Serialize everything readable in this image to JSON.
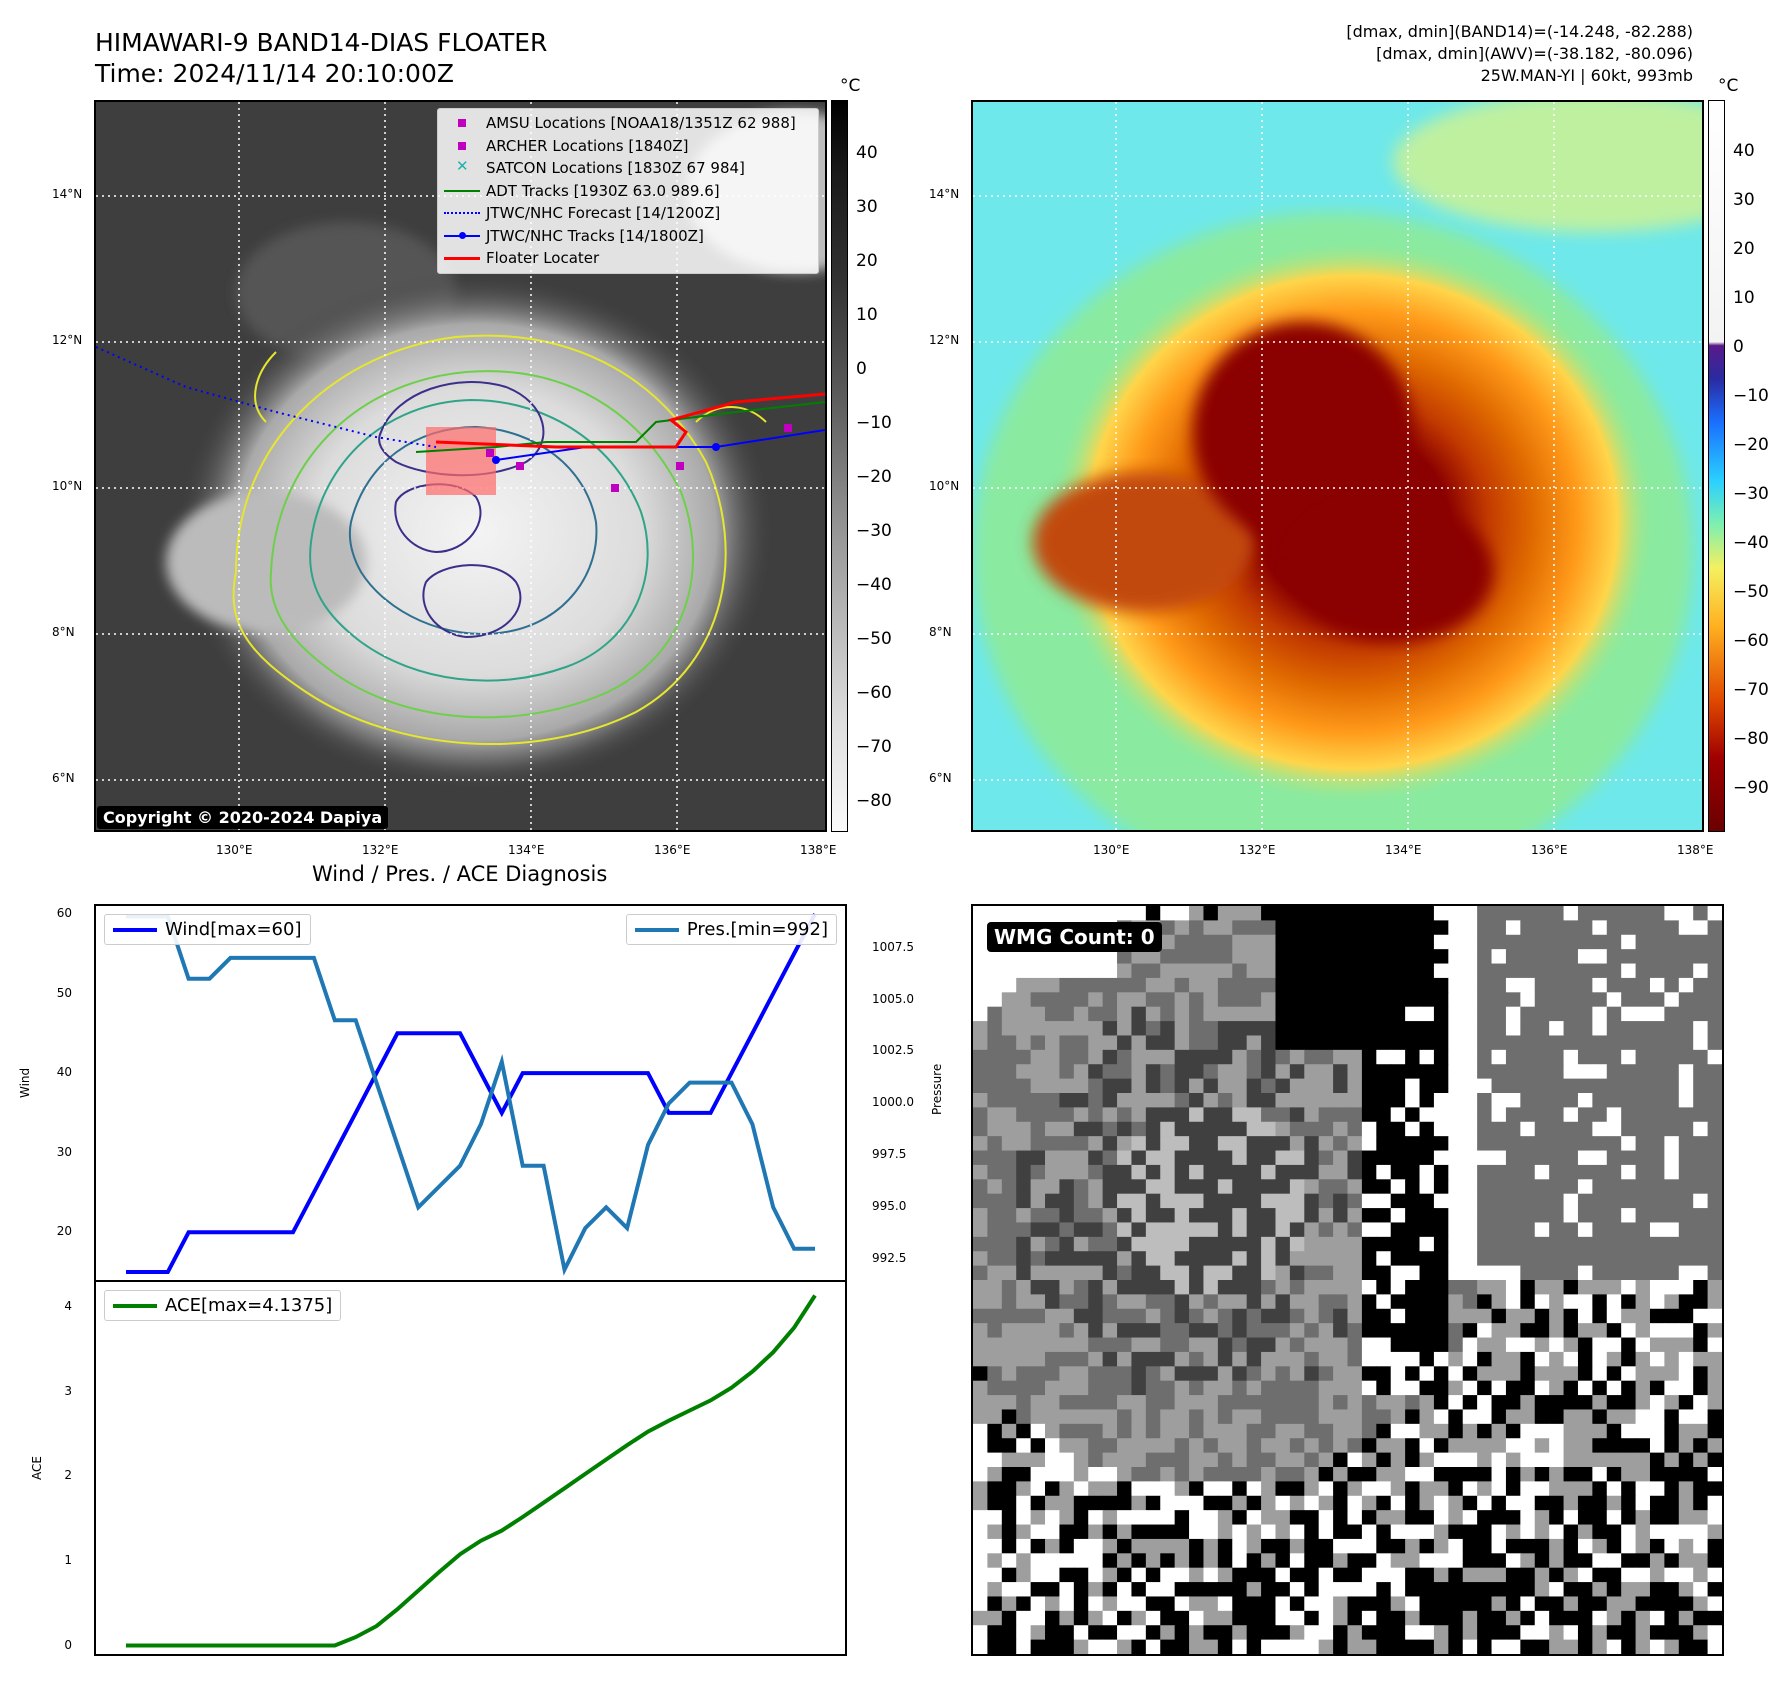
{
  "header": {
    "title_line1": "HIMAWARI-9 BAND14-DIAS FLOATER",
    "title_line2": "Time: 2024/11/14 20:10:00Z",
    "info_line1": "[dmax, dmin](BAND14)=(-14.248, -82.288)",
    "info_line2": "[dmax, dmin](AWV)=(-38.182, -80.096)",
    "info_line3": "25W.MAN-YI | 60kt, 993mb"
  },
  "map": {
    "lat_labels": [
      "14°N",
      "12°N",
      "10°N",
      "8°N",
      "6°N"
    ],
    "lon_labels": [
      "130°E",
      "132°E",
      "134°E",
      "136°E",
      "138°E"
    ],
    "copyright": "Copyright © 2020-2024 Dapiya",
    "legend": [
      {
        "label": "AMSU Locations [NOAA18/1351Z 62 988]",
        "symbol": "square",
        "color": "#c000c0"
      },
      {
        "label": "ARCHER Locations [1840Z]",
        "symbol": "square",
        "color": "#c000c0"
      },
      {
        "label": "SATCON Locations [1830Z 67 984]",
        "symbol": "x",
        "color": "#20b2aa"
      },
      {
        "label": "ADT Tracks [1930Z 63.0 989.6]",
        "symbol": "line",
        "color": "#008000"
      },
      {
        "label": "JTWC/NHC Forecast [14/1200Z]",
        "symbol": "dotted",
        "color": "#0000ff"
      },
      {
        "label": "JTWC/NHC Tracks [14/1800Z]",
        "symbol": "line-dot",
        "color": "#0000ff"
      },
      {
        "label": "Floater Locater",
        "symbol": "line",
        "color": "#ff0000"
      }
    ]
  },
  "colorbar_gray": {
    "unit": "°C",
    "ticks": [
      "40",
      "30",
      "20",
      "10",
      "0",
      "−10",
      "−20",
      "−30",
      "−40",
      "−50",
      "−60",
      "−70",
      "−80"
    ]
  },
  "colorbar_color": {
    "unit": "°C",
    "ticks": [
      "40",
      "30",
      "20",
      "10",
      "0",
      "−10",
      "−20",
      "−30",
      "−40",
      "−50",
      "−60",
      "−70",
      "−80",
      "−90"
    ]
  },
  "diagnosis": {
    "title": "Wind / Pres. / ACE Diagnosis",
    "wind_legend": "Wind[max=60]",
    "pres_legend": "Pres.[min=992]",
    "ace_legend": "ACE[max=4.1375]",
    "wind_axis_label": "Wind",
    "pres_axis_label": "Pressure",
    "ace_axis_label": "ACE",
    "wmg_count": "WMG Count: 0"
  },
  "chart_data": [
    {
      "type": "line",
      "name": "wind",
      "series_name": "Wind[max=60]",
      "color": "#0000ff",
      "values": [
        15,
        15,
        15,
        20,
        20,
        20,
        20,
        20,
        20,
        25,
        30,
        35,
        40,
        45,
        45,
        45,
        45,
        40,
        35,
        40,
        40,
        40,
        40,
        40,
        40,
        40,
        35,
        35,
        35,
        40,
        45,
        50,
        55,
        60
      ],
      "ylim": [
        14,
        61
      ],
      "yticks": [
        "20",
        "30",
        "40",
        "50",
        "60"
      ]
    },
    {
      "type": "line",
      "name": "pressure",
      "series_name": "Pres.[min=992]",
      "color": "#1f77b4",
      "values": [
        1009,
        1009,
        1009,
        1006,
        1006,
        1007,
        1007,
        1007,
        1007,
        1007,
        1004,
        1004,
        1001,
        998,
        995,
        996,
        997,
        999,
        1002,
        997,
        997,
        992,
        994,
        995,
        994,
        998,
        1000,
        1001,
        1001,
        1001,
        999,
        995,
        993,
        993
      ],
      "ylim": [
        991.5,
        1009.5
      ],
      "yticks": [
        "1007.5",
        "1005.0",
        "1002.5",
        "1000.0",
        "997.5",
        "995.0",
        "992.5"
      ]
    },
    {
      "type": "line",
      "name": "ace",
      "series_name": "ACE[max=4.1375]",
      "color": "#008000",
      "values": [
        0,
        0,
        0,
        0,
        0,
        0,
        0,
        0,
        0,
        0,
        0,
        0.1,
        0.23,
        0.43,
        0.65,
        0.87,
        1.08,
        1.24,
        1.36,
        1.52,
        1.69,
        1.86,
        2.03,
        2.2,
        2.37,
        2.53,
        2.66,
        2.78,
        2.9,
        3.05,
        3.24,
        3.47,
        3.76,
        4.14
      ],
      "ylim": [
        -0.1,
        4.3
      ],
      "yticks": [
        "4",
        "3",
        "2",
        "1",
        "0"
      ]
    }
  ]
}
